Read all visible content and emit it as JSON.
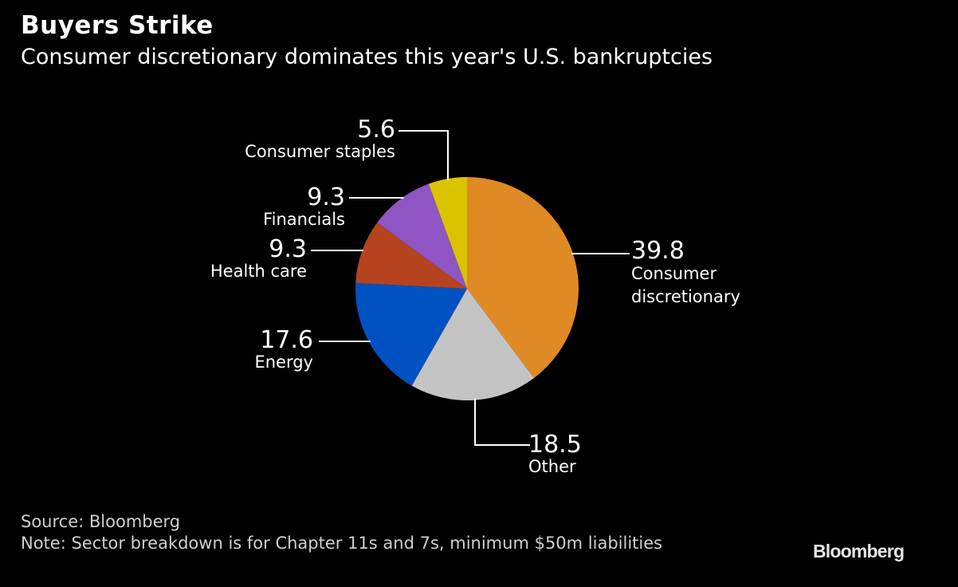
{
  "chart_data": {
    "type": "pie",
    "title": "Buyers Strike",
    "subtitle": "Consumer discretionary dominates this year's U.S. bankruptcies",
    "slices": [
      {
        "label": "Consumer discretionary",
        "label_lines": [
          "Consumer",
          "discretionary"
        ],
        "value": 39.8,
        "value_text": "39.8",
        "color": "#e08a26"
      },
      {
        "label": "Other",
        "label_lines": [
          "Other"
        ],
        "value": 18.5,
        "value_text": "18.5",
        "color": "#c4c4c4"
      },
      {
        "label": "Energy",
        "label_lines": [
          "Energy"
        ],
        "value": 17.6,
        "value_text": "17.6",
        "color": "#0052c2"
      },
      {
        "label": "Health care",
        "label_lines": [
          "Health care"
        ],
        "value": 9.3,
        "value_text": "9.3",
        "color": "#b5431f"
      },
      {
        "label": "Financials",
        "label_lines": [
          "Financials"
        ],
        "value": 9.3,
        "value_text": "9.3",
        "color": "#8f55c4"
      },
      {
        "label": "Consumer staples",
        "label_lines": [
          "Consumer staples"
        ],
        "value": 5.6,
        "value_text": "5.6",
        "color": "#dcc300"
      }
    ],
    "source": "Source: Bloomberg",
    "note": "Note: Sector breakdown is for Chapter 11s and 7s, minimum $50m liabilities"
  },
  "branding": {
    "logo_text": "Bloomberg"
  },
  "colors": {
    "background": "#000000",
    "text": "#ffffff",
    "leader_line": "#ffffff"
  }
}
